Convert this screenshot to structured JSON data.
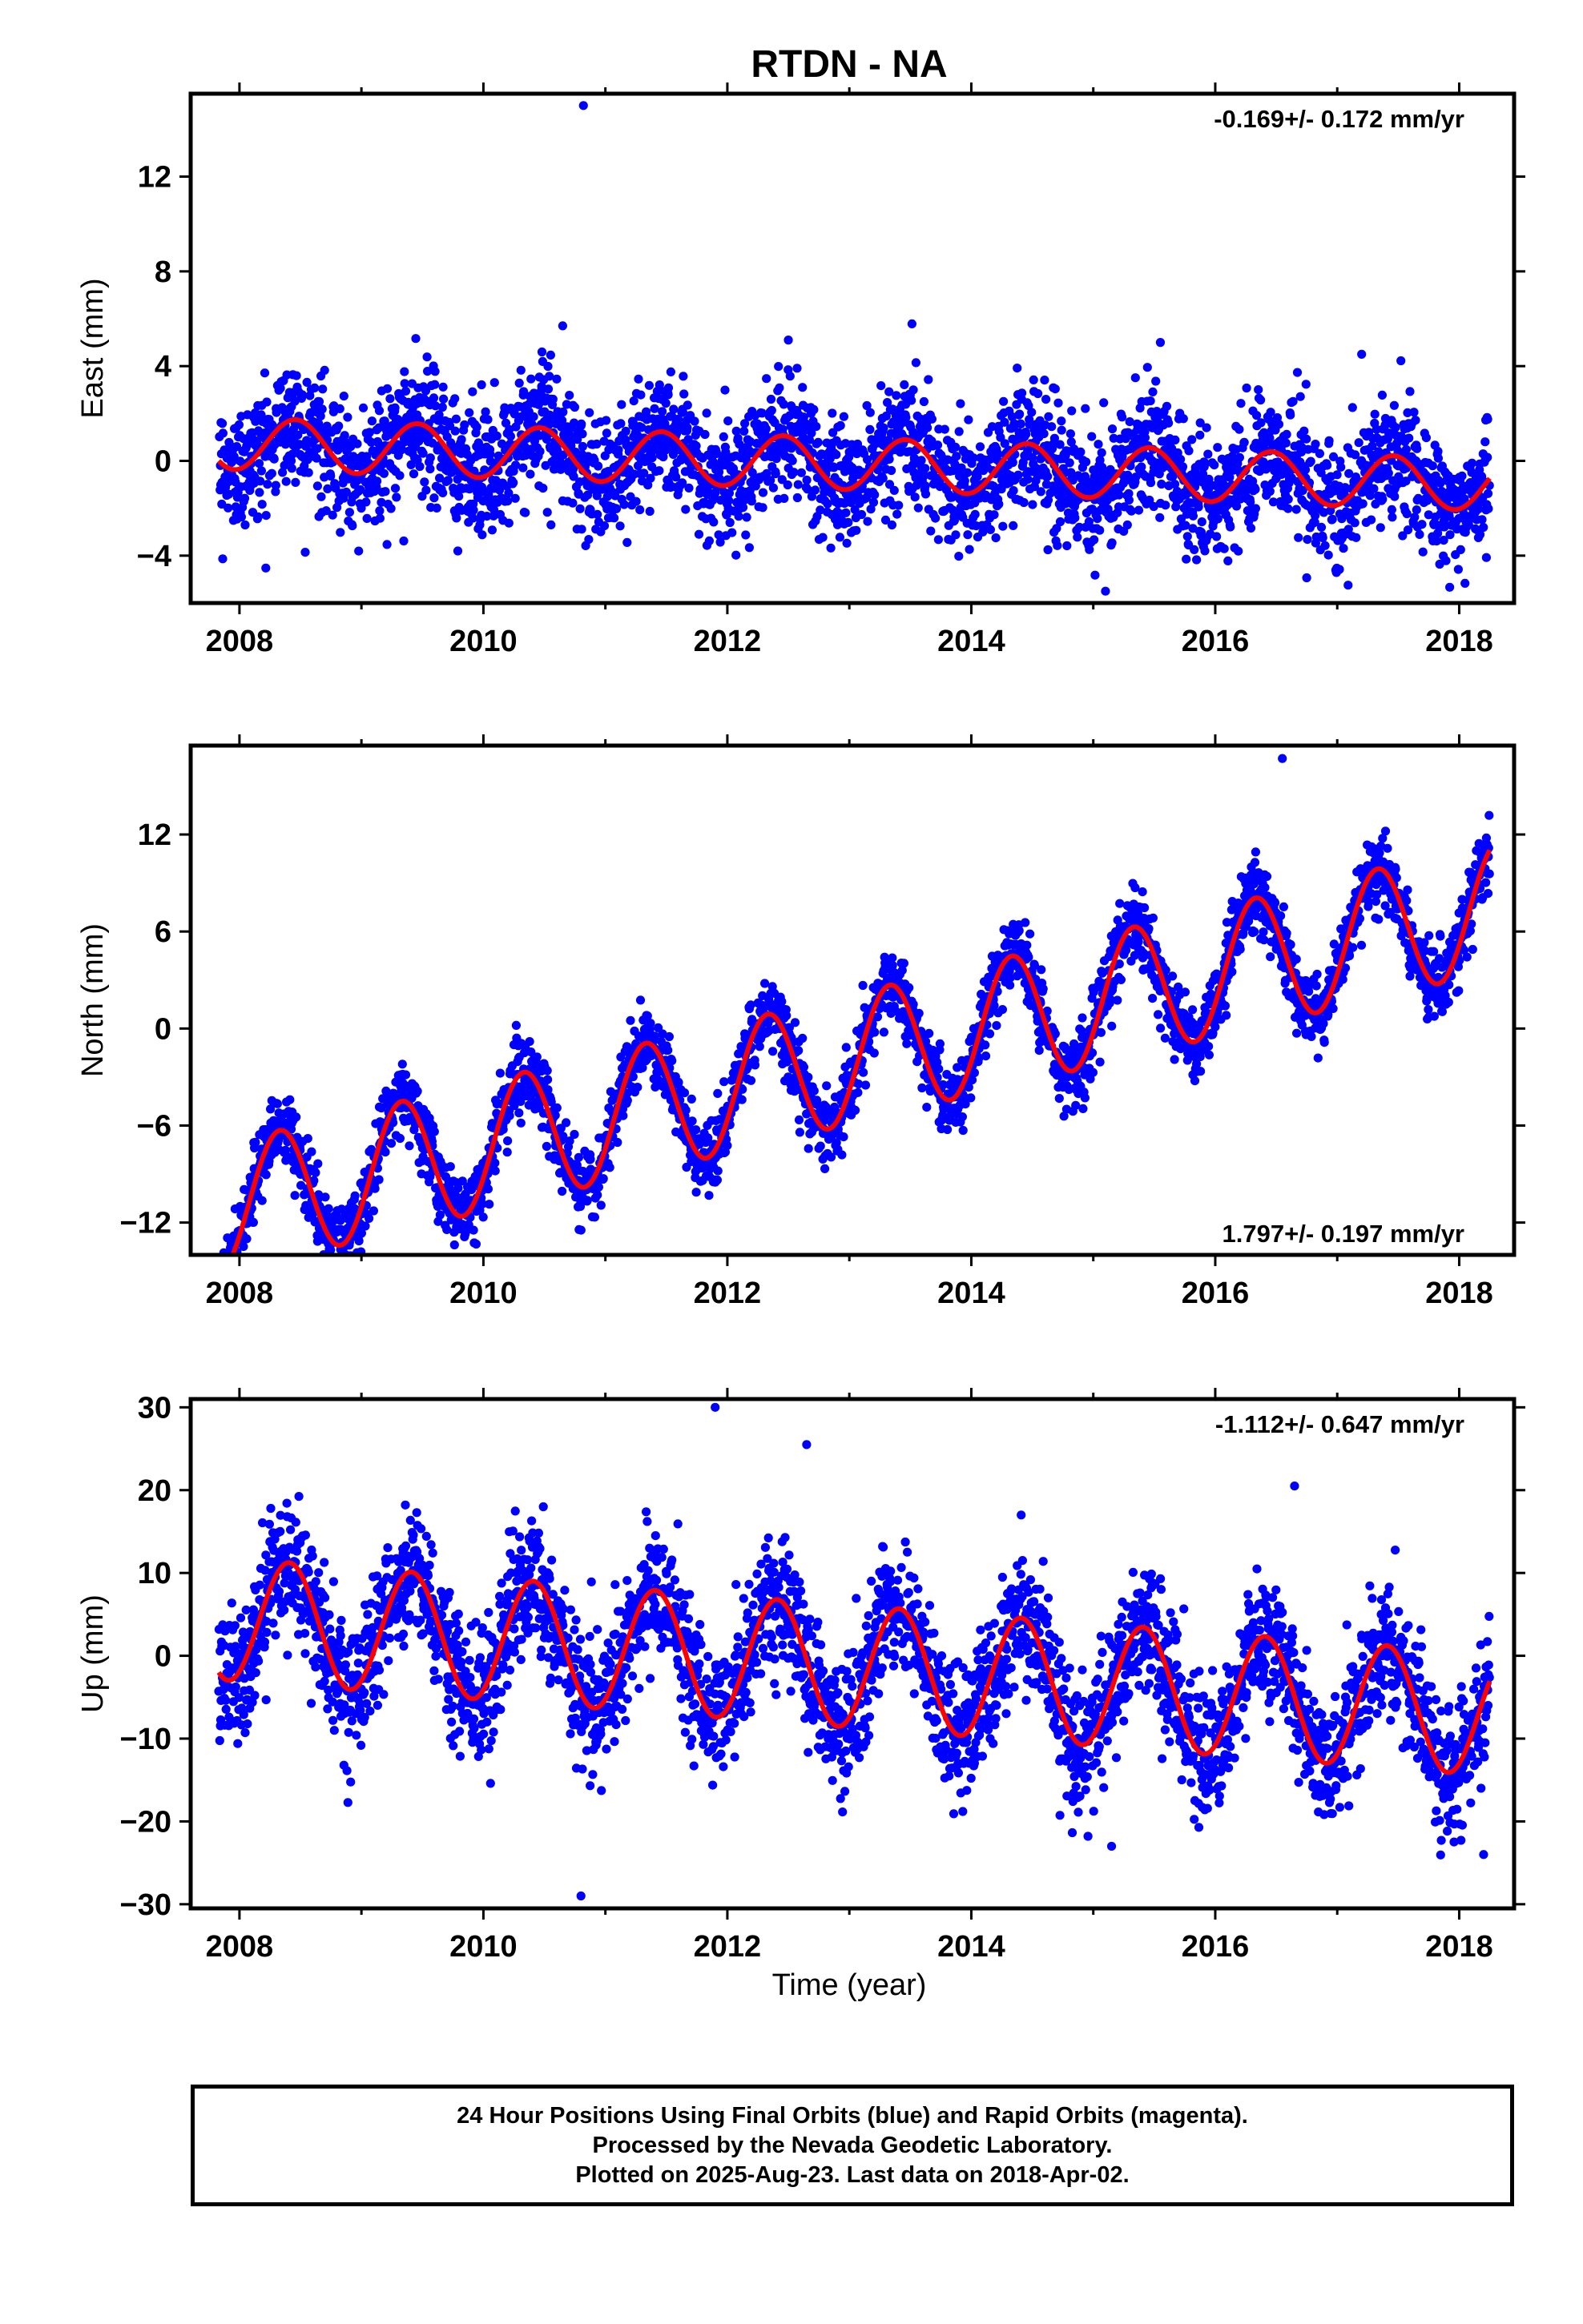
{
  "title": "RTDN - NA",
  "xlabel": "Time (year)",
  "colors": {
    "points": "#0000ff",
    "model": "#ff0000",
    "axes": "#000000"
  },
  "footer": {
    "line1": "24 Hour Positions Using Final Orbits (blue) and Rapid Orbits (magenta).",
    "line2": "Processed by the Nevada Geodetic Laboratory.",
    "line3": "Plotted on 2025-Aug-23. Last data on 2018-Apr-02."
  },
  "chart_data": [
    {
      "type": "scatter",
      "component": "east",
      "ylabel": "East (mm)",
      "rate_label": "-0.169+/- 0.172 mm/yr",
      "rate_position": "top-right",
      "xlim": [
        2007.6,
        2018.45
      ],
      "ylim": [
        -6.0,
        15.5
      ],
      "xticks": [
        2008,
        2010,
        2012,
        2014,
        2016,
        2018
      ],
      "xtick_labels": [
        "2008",
        "2010",
        "2012",
        "2014",
        "2016",
        "2018"
      ],
      "yticks": [
        -4,
        0,
        4,
        8,
        12
      ],
      "ytick_labels": [
        "−4",
        "0",
        "4",
        "8",
        "12"
      ],
      "data_range": [
        2007.83,
        2018.25
      ],
      "rate_mm_per_yr": -0.169,
      "model": {
        "intercept_mm": 0.75,
        "annual_cos_mm": -0.75,
        "annual_sin_mm": -0.8
      },
      "scatter_sigma_mm": 1.3,
      "outliers": [
        [
          2010.82,
          15.0
        ],
        [
          2015.1,
          -5.5
        ],
        [
          2017.2,
          4.5
        ],
        [
          2010.65,
          5.7
        ],
        [
          2012.5,
          5.1
        ],
        [
          2015.55,
          5.0
        ]
      ]
    },
    {
      "type": "scatter",
      "component": "north",
      "ylabel": "North (mm)",
      "rate_label": "1.797+/- 0.197 mm/yr",
      "rate_position": "bottom-right",
      "xlim": [
        2007.6,
        2018.45
      ],
      "ylim": [
        -14.0,
        17.5
      ],
      "xticks": [
        2008,
        2010,
        2012,
        2014,
        2016,
        2018
      ],
      "xtick_labels": [
        "2008",
        "2010",
        "2012",
        "2014",
        "2016",
        "2018"
      ],
      "yticks": [
        -12,
        -6,
        0,
        6,
        12
      ],
      "ytick_labels": [
        "−12",
        "−6",
        "0",
        "6",
        "12"
      ],
      "data_range": [
        2007.83,
        2018.25
      ],
      "rate_mm_per_yr": 1.797,
      "model": {
        "intercept_mm": -11.2,
        "annual_cos_mm": -4.0,
        "annual_sin_mm": 0.0
      },
      "scatter_sigma_mm": 1.1,
      "outliers": [
        [
          2016.55,
          16.7
        ],
        [
          2007.95,
          -13.0
        ]
      ]
    },
    {
      "type": "scatter",
      "component": "up",
      "ylabel": "Up (mm)",
      "rate_label": "-1.112+/- 0.647 mm/yr",
      "rate_position": "top-right",
      "xlim": [
        2007.6,
        2018.45
      ],
      "ylim": [
        -30.5,
        31.0
      ],
      "xticks": [
        2008,
        2010,
        2012,
        2014,
        2016,
        2018
      ],
      "xtick_labels": [
        "2008",
        "2010",
        "2012",
        "2014",
        "2016",
        "2018"
      ],
      "yticks": [
        -30,
        -20,
        -10,
        0,
        10,
        20,
        30
      ],
      "ytick_labels": [
        "−30",
        "−20",
        "−10",
        "0",
        "10",
        "20",
        "30"
      ],
      "data_range": [
        2007.83,
        2018.25
      ],
      "rate_mm_per_yr": -1.112,
      "model": {
        "intercept_mm": 4.5,
        "annual_cos_mm": -6.5,
        "annual_sin_mm": -3.5
      },
      "scatter_sigma_mm": 4.0,
      "outliers": [
        [
          2011.9,
          30.0
        ],
        [
          2010.8,
          -29.0
        ],
        [
          2016.65,
          20.5
        ],
        [
          2018.2,
          -24.0
        ],
        [
          2015.15,
          -23.0
        ],
        [
          2012.65,
          25.5
        ]
      ]
    }
  ]
}
